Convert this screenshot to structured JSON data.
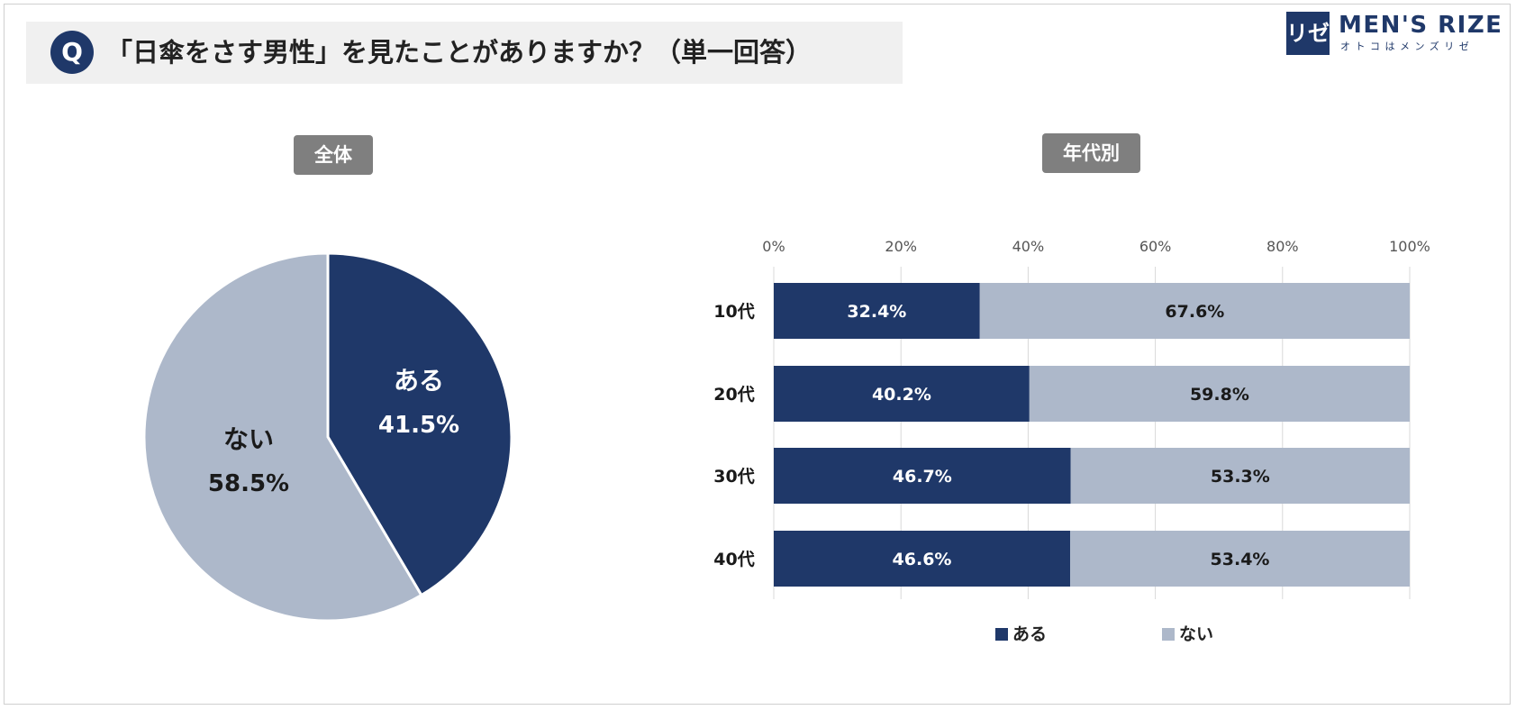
{
  "header": {
    "q_badge": "Q",
    "question": "「日傘をさす男性」を見たことがありますか？（単一回答）"
  },
  "logo": {
    "mark": "リゼ",
    "name": "MEN'S RIZE",
    "tagline": "オトコはメンズリゼ"
  },
  "colors": {
    "aru": "#1f3869",
    "nai": "#adb8ca"
  },
  "chart_data": [
    {
      "type": "pie",
      "title": "全体",
      "slices": [
        {
          "label": "ある",
          "value": 41.5,
          "display": "41.5%"
        },
        {
          "label": "ない",
          "value": 58.5,
          "display": "58.5%"
        }
      ]
    },
    {
      "type": "bar",
      "orientation": "horizontal",
      "stacked": true,
      "title": "年代別",
      "categories": [
        "10代",
        "20代",
        "30代",
        "40代"
      ],
      "series": [
        {
          "name": "ある",
          "values": [
            32.4,
            40.2,
            46.7,
            46.6
          ],
          "labels": [
            "32.4%",
            "40.2%",
            "46.7%",
            "46.6%"
          ]
        },
        {
          "name": "ない",
          "values": [
            67.6,
            59.8,
            53.3,
            53.4
          ],
          "labels": [
            "67.6%",
            "59.8%",
            "53.3%",
            "53.4%"
          ]
        }
      ],
      "xlim": [
        0,
        100
      ],
      "xticks": [
        "0%",
        "20%",
        "40%",
        "60%",
        "80%",
        "100%"
      ],
      "grid": true,
      "legend": "bottom"
    }
  ]
}
